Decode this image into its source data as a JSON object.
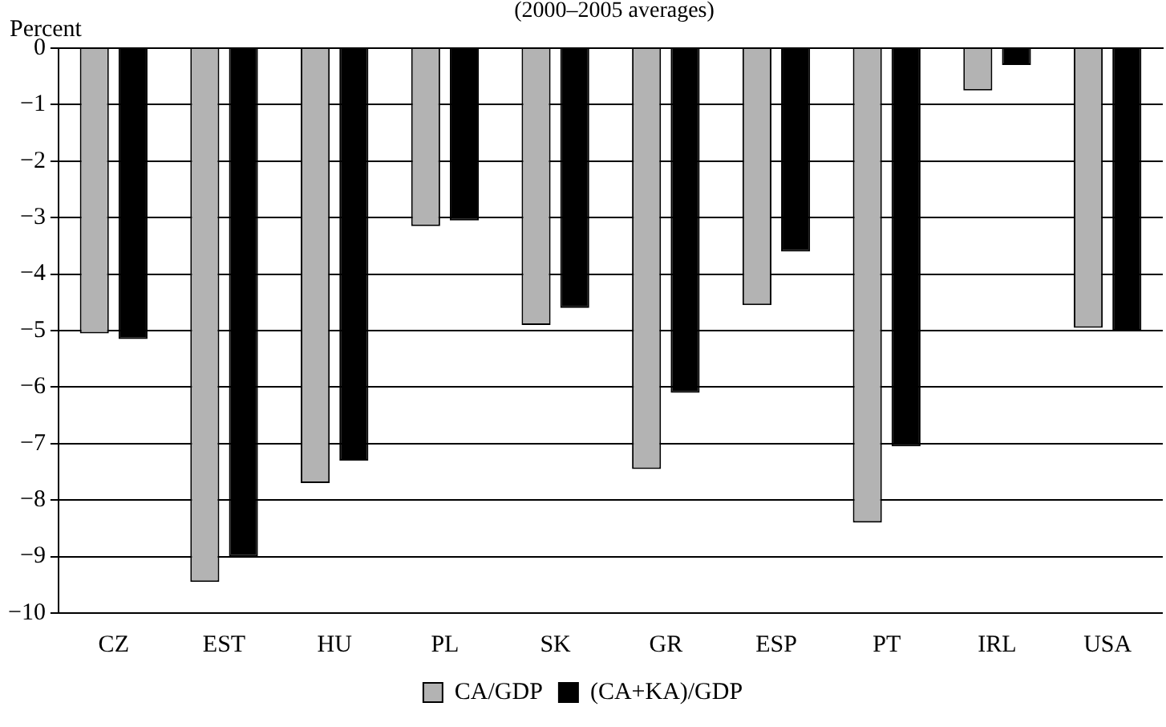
{
  "chart_data": {
    "type": "bar",
    "title": "(2000–2005 averages)",
    "ylabel": "Percent",
    "categories": [
      "CZ",
      "EST",
      "HU",
      "PL",
      "SK",
      "GR",
      "ESP",
      "PT",
      "IRL",
      "USA"
    ],
    "series": [
      {
        "name": "CA/GDP",
        "color": "#b3b3b3",
        "values": [
          -5.05,
          -9.45,
          -7.7,
          -3.15,
          -4.9,
          -7.45,
          -4.55,
          -8.4,
          -0.75,
          -4.95
        ]
      },
      {
        "name": "(CA+KA)/GDP",
        "color": "#000000",
        "values": [
          -5.15,
          -9.0,
          -7.3,
          -3.05,
          -4.6,
          -6.1,
          -3.6,
          -7.05,
          -0.3,
          -5.0
        ]
      }
    ],
    "ylim": [
      -10,
      0
    ],
    "yticks": [
      0,
      {
        "value": -1,
        "label": "−1"
      },
      {
        "value": -2,
        "label": "−2"
      },
      {
        "value": -3,
        "label": "−3"
      },
      {
        "value": -4,
        "label": "−4"
      },
      {
        "value": -5,
        "label": "−5"
      },
      {
        "value": -6,
        "label": "−6"
      },
      {
        "value": -7,
        "label": "−7"
      },
      {
        "value": -8,
        "label": "−8"
      },
      {
        "value": -9,
        "label": "−9"
      },
      {
        "value": -10,
        "label": "−10"
      }
    ],
    "grid": "y",
    "legend": "bottom"
  }
}
